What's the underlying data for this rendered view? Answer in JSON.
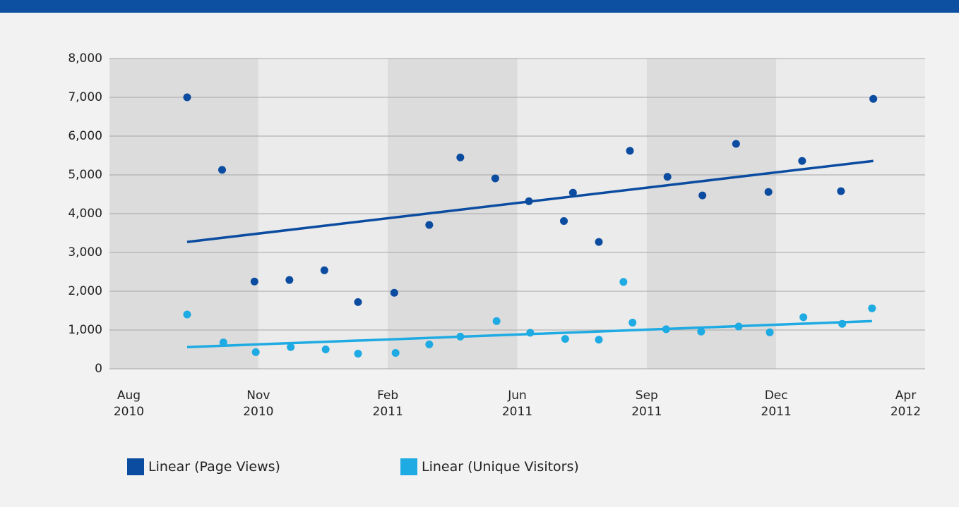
{
  "chart_data": {
    "type": "scatter",
    "xlim": [
      -0.15,
      6.15
    ],
    "xticks": [
      {
        "value": 0,
        "label": "Aug 2010"
      },
      {
        "value": 1,
        "label": "Nov 2010"
      },
      {
        "value": 2,
        "label": "Feb 2011"
      },
      {
        "value": 3,
        "label": "Jun 2011"
      },
      {
        "value": 4,
        "label": "Sep 2011"
      },
      {
        "value": 5,
        "label": "Dec 2011"
      },
      {
        "value": 6,
        "label": "Apr 2012"
      }
    ],
    "ylim": [
      0,
      8000
    ],
    "yticks": [
      0,
      {
        "value": 1000,
        "label": "1,000"
      },
      {
        "value": 2000,
        "label": "2,000"
      },
      {
        "value": 3000,
        "label": "3,000"
      },
      {
        "value": 4000,
        "label": "4,000"
      },
      {
        "value": 5000,
        "label": "5,000"
      },
      {
        "value": 6000,
        "label": "6,000"
      },
      {
        "value": 7000,
        "label": "7,000"
      },
      {
        "value": 8000,
        "label": "8,000"
      }
    ],
    "grid": true,
    "legend": "bottom",
    "series": [
      {
        "name": "Linear (Page Views)",
        "color": "#0b4ca0",
        "x": [
          0.45,
          0.72,
          0.97,
          1.24,
          1.51,
          1.77,
          2.05,
          2.32,
          2.56,
          2.83,
          3.09,
          3.36,
          3.43,
          3.63,
          3.87,
          4.16,
          4.43,
          4.69,
          4.94,
          5.2,
          5.5,
          5.75
        ],
        "values": [
          7000,
          5130,
          2250,
          2290,
          2540,
          1720,
          1960,
          3710,
          5450,
          4910,
          4320,
          3810,
          4540,
          3270,
          5620,
          4950,
          4470,
          5800,
          4560,
          5360,
          4580,
          6960
        ],
        "trend": {
          "x": [
            0.45,
            5.75
          ],
          "values": [
            3270,
            5360
          ]
        }
      },
      {
        "name": "Linear (Unique Visitors)",
        "color": "#1eaae2",
        "x": [
          0.45,
          0.73,
          0.98,
          1.25,
          1.52,
          1.77,
          2.06,
          2.32,
          2.56,
          2.84,
          3.1,
          3.37,
          3.63,
          3.82,
          3.89,
          4.15,
          4.42,
          4.71,
          4.95,
          5.21,
          5.51,
          5.74
        ],
        "values": [
          1400,
          680,
          430,
          560,
          500,
          390,
          410,
          630,
          830,
          1230,
          930,
          770,
          750,
          2240,
          1190,
          1020,
          960,
          1090,
          940,
          1330,
          1160,
          1560
        ],
        "trend": {
          "x": [
            0.45,
            5.74
          ],
          "values": [
            560,
            1230
          ]
        }
      }
    ]
  }
}
